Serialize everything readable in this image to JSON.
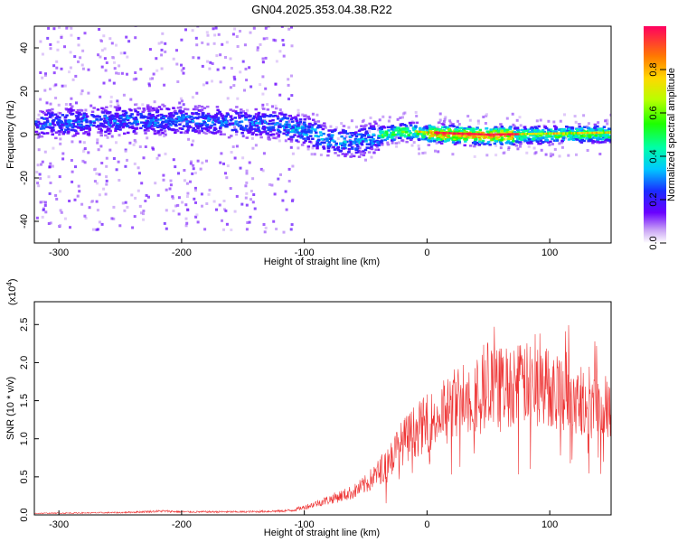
{
  "title": "GN04.2025.353.04.38.R22",
  "chart_data": [
    {
      "type": "heatmap",
      "title": "GN04.2025.353.04.38.R22",
      "xlabel": "Height of straight line (km)",
      "ylabel": "Frequency (Hz)",
      "xlim": [
        -320,
        150
      ],
      "ylim": [
        -50,
        50
      ],
      "xticks": [
        -300,
        -200,
        -100,
        0,
        100
      ],
      "xtick_labels": [
        "-300",
        "-200",
        "-100",
        "0",
        "100"
      ],
      "yticks": [
        -40,
        -20,
        0,
        20,
        40
      ],
      "ytick_labels": [
        "-40",
        "-20",
        "0",
        "20",
        "40"
      ],
      "band_center_hz": [
        {
          "x": -300,
          "f": 6
        },
        {
          "x": -250,
          "f": 7
        },
        {
          "x": -200,
          "f": 7
        },
        {
          "x": -150,
          "f": 6
        },
        {
          "x": -120,
          "f": 5
        },
        {
          "x": -100,
          "f": 2
        },
        {
          "x": -80,
          "f": -2
        },
        {
          "x": -60,
          "f": -3
        },
        {
          "x": -40,
          "f": 0
        },
        {
          "x": -20,
          "f": 2
        },
        {
          "x": 0,
          "f": 1
        },
        {
          "x": 50,
          "f": 0
        },
        {
          "x": 100,
          "f": 0.5
        },
        {
          "x": 150,
          "f": 1
        }
      ],
      "colorbar": {
        "label": "Normalized spectral amplitude",
        "range": [
          0,
          1
        ],
        "ticks": [
          0,
          0.2,
          0.4,
          0.6,
          0.8
        ],
        "tick_labels": [
          "0.0",
          "0.2",
          "0.4",
          "0.6",
          "0.8"
        ]
      }
    },
    {
      "type": "line",
      "xlabel": "Height of straight line (km)",
      "ylabel": "SNR (10 * v/v)",
      "y_multiplier_label": "(x10",
      "y_multiplier_exp": "4",
      "y_multiplier_close": ")",
      "xlim": [
        -320,
        150
      ],
      "ylim": [
        0,
        2.8
      ],
      "xticks": [
        -300,
        -200,
        -100,
        0,
        100
      ],
      "xtick_labels": [
        "-300",
        "-200",
        "-100",
        "0",
        "100"
      ],
      "yticks": [
        0,
        0.5,
        1.0,
        1.5,
        2.0,
        2.5
      ],
      "ytick_labels": [
        "0.0",
        "0.5",
        "1.0",
        "1.5",
        "2.0",
        "2.5"
      ],
      "series": [
        {
          "name": "SNR",
          "color": "#ee3333",
          "envelope_x": [
            -320,
            -250,
            -215,
            -200,
            -150,
            -120,
            -110,
            -100,
            -80,
            -60,
            -50,
            -40,
            -30,
            -20,
            -10,
            0,
            10,
            20,
            30,
            40,
            50,
            60,
            70,
            80,
            90,
            100,
            110,
            120,
            130,
            140,
            150
          ],
          "envelope_y": [
            0.02,
            0.03,
            0.05,
            0.04,
            0.04,
            0.05,
            0.06,
            0.1,
            0.2,
            0.3,
            0.4,
            0.55,
            0.75,
            0.95,
            1.1,
            1.2,
            1.3,
            1.45,
            1.55,
            1.6,
            1.65,
            1.68,
            1.7,
            1.72,
            1.7,
            1.68,
            1.62,
            1.55,
            1.5,
            1.45,
            1.45
          ]
        }
      ]
    }
  ]
}
